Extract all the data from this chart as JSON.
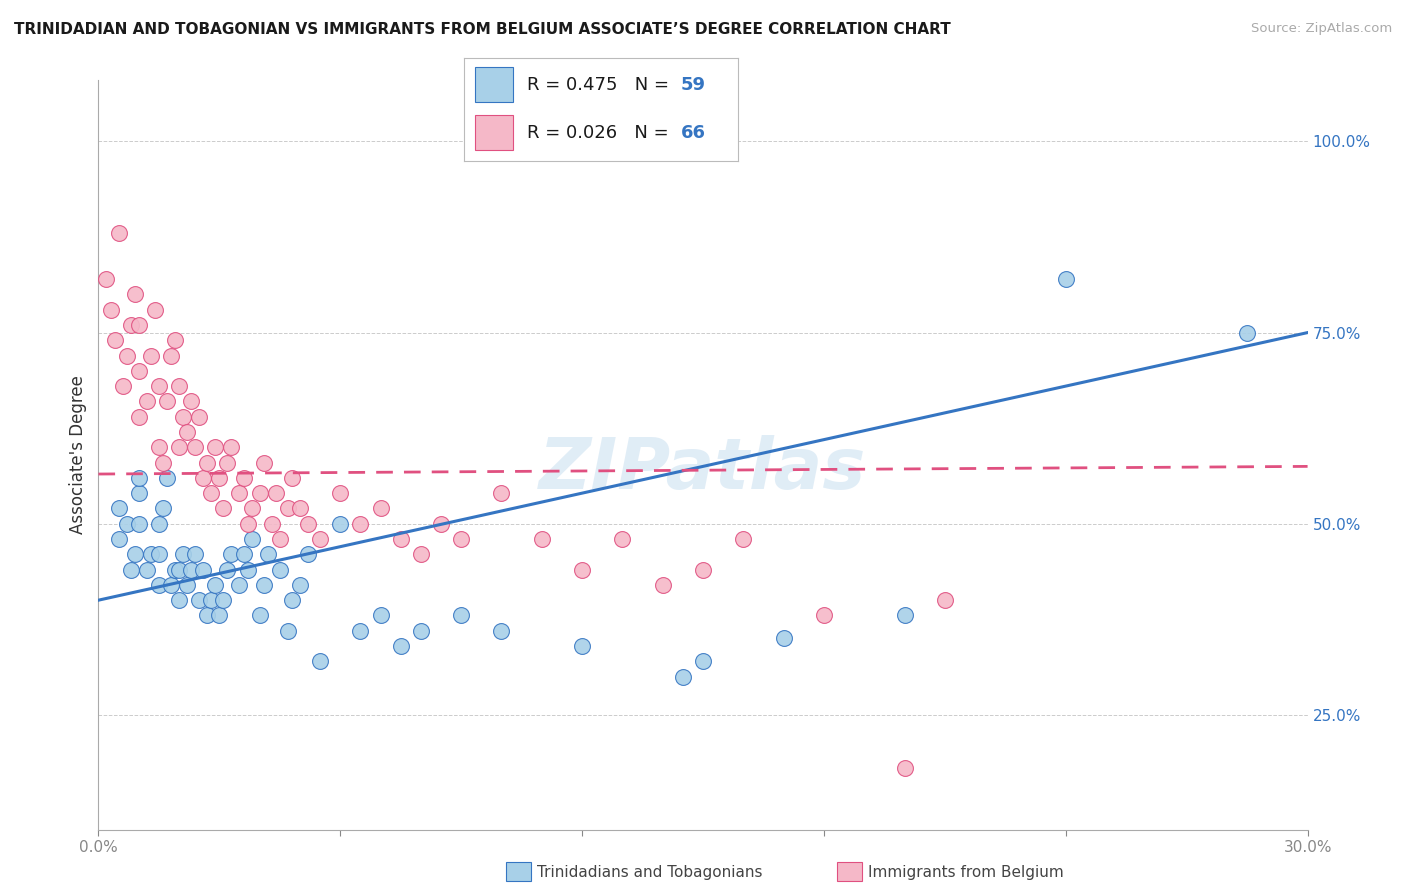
{
  "title": "TRINIDADIAN AND TOBAGONIAN VS IMMIGRANTS FROM BELGIUM ASSOCIATE’S DEGREE CORRELATION CHART",
  "source": "Source: ZipAtlas.com",
  "ylabel": "Associate's Degree",
  "yticks": [
    0.25,
    0.5,
    0.75,
    1.0
  ],
  "ytick_labels": [
    "25.0%",
    "50.0%",
    "75.0%",
    "100.0%"
  ],
  "xlim": [
    0.0,
    0.3
  ],
  "ylim": [
    0.1,
    1.08
  ],
  "blue_R": 0.475,
  "blue_N": 59,
  "pink_R": 0.026,
  "pink_N": 66,
  "blue_label": "Trinidadians and Tobagonians",
  "pink_label": "Immigrants from Belgium",
  "blue_color": "#a8d0e8",
  "pink_color": "#f5b8c8",
  "blue_line_color": "#3575C2",
  "pink_line_color": "#E05080",
  "background_color": "#ffffff",
  "blue_points_x": [
    0.005,
    0.005,
    0.007,
    0.008,
    0.009,
    0.01,
    0.01,
    0.01,
    0.012,
    0.013,
    0.015,
    0.015,
    0.015,
    0.016,
    0.017,
    0.018,
    0.019,
    0.02,
    0.02,
    0.021,
    0.022,
    0.023,
    0.024,
    0.025,
    0.026,
    0.027,
    0.028,
    0.029,
    0.03,
    0.031,
    0.032,
    0.033,
    0.035,
    0.036,
    0.037,
    0.038,
    0.04,
    0.041,
    0.042,
    0.045,
    0.047,
    0.048,
    0.05,
    0.052,
    0.055,
    0.06,
    0.065,
    0.07,
    0.075,
    0.08,
    0.09,
    0.1,
    0.12,
    0.145,
    0.15,
    0.17,
    0.2,
    0.24,
    0.285
  ],
  "blue_points_y": [
    0.48,
    0.52,
    0.5,
    0.44,
    0.46,
    0.5,
    0.54,
    0.56,
    0.44,
    0.46,
    0.42,
    0.46,
    0.5,
    0.52,
    0.56,
    0.42,
    0.44,
    0.4,
    0.44,
    0.46,
    0.42,
    0.44,
    0.46,
    0.4,
    0.44,
    0.38,
    0.4,
    0.42,
    0.38,
    0.4,
    0.44,
    0.46,
    0.42,
    0.46,
    0.44,
    0.48,
    0.38,
    0.42,
    0.46,
    0.44,
    0.36,
    0.4,
    0.42,
    0.46,
    0.32,
    0.5,
    0.36,
    0.38,
    0.34,
    0.36,
    0.38,
    0.36,
    0.34,
    0.3,
    0.32,
    0.35,
    0.38,
    0.82,
    0.75
  ],
  "pink_points_x": [
    0.002,
    0.003,
    0.004,
    0.005,
    0.006,
    0.007,
    0.008,
    0.009,
    0.01,
    0.01,
    0.01,
    0.012,
    0.013,
    0.014,
    0.015,
    0.015,
    0.016,
    0.017,
    0.018,
    0.019,
    0.02,
    0.02,
    0.021,
    0.022,
    0.023,
    0.024,
    0.025,
    0.026,
    0.027,
    0.028,
    0.029,
    0.03,
    0.031,
    0.032,
    0.033,
    0.035,
    0.036,
    0.037,
    0.038,
    0.04,
    0.041,
    0.043,
    0.044,
    0.045,
    0.047,
    0.048,
    0.05,
    0.052,
    0.055,
    0.06,
    0.065,
    0.07,
    0.075,
    0.08,
    0.085,
    0.09,
    0.1,
    0.11,
    0.12,
    0.13,
    0.14,
    0.15,
    0.16,
    0.18,
    0.2,
    0.21
  ],
  "pink_points_y": [
    0.82,
    0.78,
    0.74,
    0.88,
    0.68,
    0.72,
    0.76,
    0.8,
    0.64,
    0.7,
    0.76,
    0.66,
    0.72,
    0.78,
    0.6,
    0.68,
    0.58,
    0.66,
    0.72,
    0.74,
    0.6,
    0.68,
    0.64,
    0.62,
    0.66,
    0.6,
    0.64,
    0.56,
    0.58,
    0.54,
    0.6,
    0.56,
    0.52,
    0.58,
    0.6,
    0.54,
    0.56,
    0.5,
    0.52,
    0.54,
    0.58,
    0.5,
    0.54,
    0.48,
    0.52,
    0.56,
    0.52,
    0.5,
    0.48,
    0.54,
    0.5,
    0.52,
    0.48,
    0.46,
    0.5,
    0.48,
    0.54,
    0.48,
    0.44,
    0.48,
    0.42,
    0.44,
    0.48,
    0.38,
    0.18,
    0.4
  ]
}
